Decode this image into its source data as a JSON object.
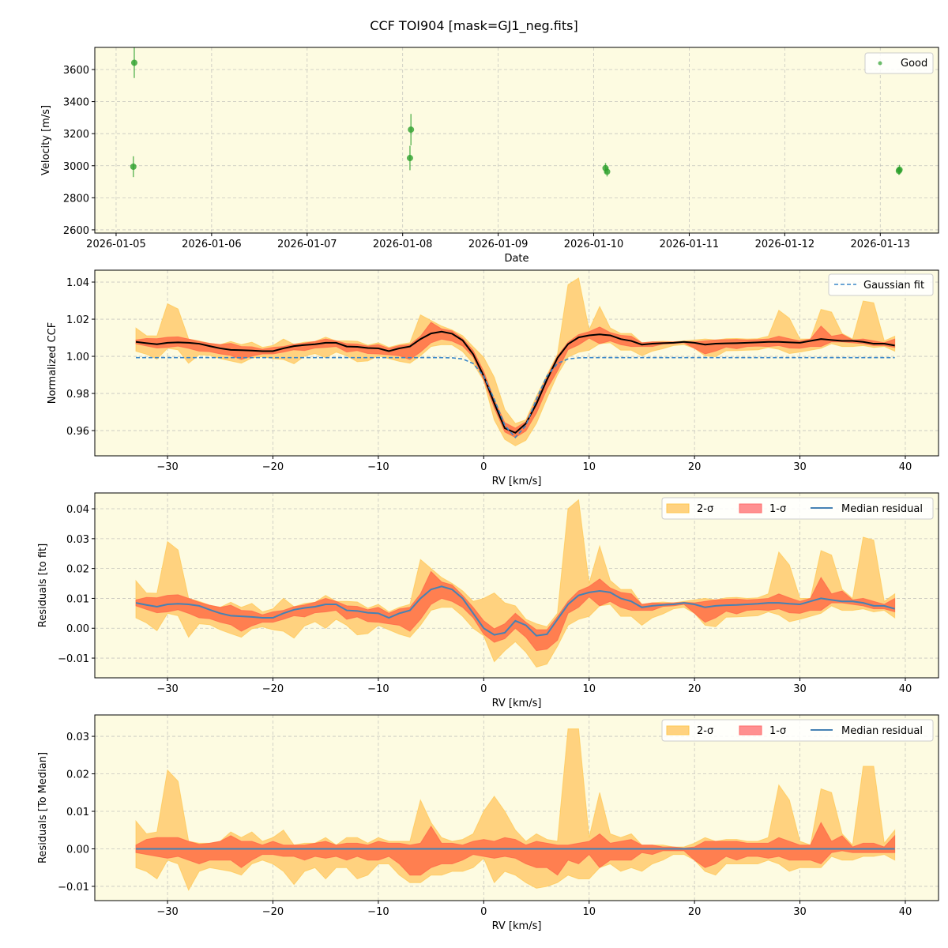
{
  "title": "CCF TOI904 [mask=GJ1_neg.fits]",
  "colors": {
    "axes_background": "#fdfbe1",
    "good_points": "#2ca02c",
    "two_sigma_fill": "#ffd27f",
    "one_sigma_fill": "#ff7f50",
    "median_line": "#000000",
    "fit_line": "#3a87c8",
    "median_residual": "#4682b4"
  },
  "chart_data": [
    {
      "type": "scatter",
      "xlabel": "Date",
      "ylabel": "Velocity [m/s]",
      "xlim": [
        "2026-01-04T18:39",
        "2026-01-13T14:38"
      ],
      "ylim": [
        2580,
        3738
      ],
      "grid": true,
      "legend": {
        "placement": "top-right",
        "entries": [
          "Good"
        ]
      },
      "x_tick_labels": [
        "2026-01-05",
        "2026-01-06",
        "2026-01-07",
        "2026-01-08",
        "2026-01-09",
        "2026-01-10",
        "2026-01-11",
        "2026-01-12",
        "2026-01-13"
      ],
      "y_ticks": [
        2600,
        2800,
        3000,
        3200,
        3400,
        3600
      ],
      "y_tick_labels": [
        "2600",
        "2800",
        "3000",
        "3200",
        "3400",
        "3600"
      ],
      "series": [
        {
          "name": "Good",
          "points": [
            {
              "date": "2026-01-05T04:34",
              "velocity": 3642,
              "error": 95
            },
            {
              "date": "2026-01-05T04:20",
              "velocity": 2994,
              "error": 65
            },
            {
              "date": "2026-01-08T02:05",
              "velocity": 3225,
              "error": 98
            },
            {
              "date": "2026-01-08T01:50",
              "velocity": 3048,
              "error": 76
            },
            {
              "date": "2026-01-10T02:58",
              "velocity": 2985,
              "error": 32
            },
            {
              "date": "2026-01-10T03:22",
              "velocity": 2963,
              "error": 30
            },
            {
              "date": "2026-01-13T04:50",
              "velocity": 2975,
              "error": 30
            },
            {
              "date": "2026-01-13T04:40",
              "velocity": 2968,
              "error": 25
            }
          ]
        }
      ]
    },
    {
      "type": "line",
      "xlabel": "RV [km/s]",
      "ylabel": "Normalized CCF",
      "xlim": [
        -36.9,
        43.15
      ],
      "ylim": [
        0.9464,
        1.0464
      ],
      "grid": true,
      "legend": {
        "placement": "top-right",
        "entries": [
          "Gaussian fit"
        ]
      },
      "y_ticks": [
        0.96,
        0.98,
        1.0,
        1.02,
        1.04
      ],
      "y_tick_labels": [
        "0.96",
        "0.98",
        "1.00",
        "1.02",
        "1.04"
      ],
      "gaussian_fit": {
        "baseline": 0.9993,
        "depth": 0.043,
        "center": 3.0,
        "sigma": 1.75
      }
    },
    {
      "type": "area",
      "xlabel": "RV [km/s]",
      "ylabel": "Residuals [to fit]",
      "xlim": [
        -36.9,
        43.15
      ],
      "ylim": [
        -0.0166,
        0.0453
      ],
      "grid": true,
      "legend": {
        "placement": "top-right",
        "entries": [
          "2-σ",
          "1-σ",
          "Median residual"
        ]
      },
      "y_ticks": [
        -0.01,
        0.0,
        0.01,
        0.02,
        0.03,
        0.04
      ],
      "y_tick_labels": [
        "−0.01",
        "0.00",
        "0.01",
        "0.02",
        "0.03",
        "0.04"
      ]
    },
    {
      "type": "area",
      "xlabel": "RV [km/s]",
      "ylabel": "Residuals [To Median]",
      "xlim": [
        -36.9,
        43.15
      ],
      "ylim": [
        -0.0138,
        0.0357
      ],
      "grid": true,
      "legend": {
        "placement": "top-right",
        "entries": [
          "2-σ",
          "1-σ",
          "Median residual"
        ]
      },
      "y_ticks": [
        -0.01,
        0.0,
        0.01,
        0.02,
        0.03
      ],
      "y_tick_labels": [
        "−0.01",
        "0.00",
        "0.01",
        "0.02",
        "0.03"
      ]
    }
  ],
  "rv_tick_values": [
    -30,
    -20,
    -10,
    0,
    10,
    20,
    30,
    40
  ],
  "rv_tick_labels": [
    "−30",
    "−20",
    "−10",
    "0",
    "10",
    "20",
    "30",
    "40"
  ],
  "ccf_profile": {
    "rv": [
      -33,
      -32,
      -31,
      -30,
      -29,
      -28,
      -27,
      -26,
      -25,
      -24,
      -23,
      -22,
      -21,
      -20,
      -19,
      -18,
      -17,
      -16,
      -15,
      -14,
      -13,
      -12,
      -11,
      -10,
      -9,
      -8,
      -7,
      -6,
      -5,
      -4,
      -3,
      -2,
      -1,
      0,
      1,
      2,
      3,
      4,
      5,
      6,
      7,
      8,
      9,
      10,
      11,
      12,
      13,
      14,
      15,
      16,
      17,
      18,
      19,
      20,
      21,
      22,
      23,
      24,
      25,
      26,
      27,
      28,
      29,
      30,
      31,
      32,
      33,
      34,
      35,
      36,
      37,
      38,
      39
    ],
    "median_residual": [
      0.0085,
      0.0078,
      0.0072,
      0.008,
      0.0082,
      0.008,
      0.0075,
      0.0062,
      0.005,
      0.0042,
      0.004,
      0.0038,
      0.0035,
      0.0035,
      0.005,
      0.0062,
      0.0068,
      0.0072,
      0.008,
      0.008,
      0.006,
      0.0058,
      0.0052,
      0.005,
      0.0035,
      0.005,
      0.006,
      0.01,
      0.013,
      0.014,
      0.013,
      0.01,
      0.005,
      0.0,
      -0.0022,
      -0.0015,
      0.0025,
      0.001,
      -0.0025,
      -0.002,
      0.003,
      0.008,
      0.011,
      0.012,
      0.0125,
      0.012,
      0.01,
      0.009,
      0.007,
      0.0075,
      0.0078,
      0.008,
      0.0085,
      0.008,
      0.007,
      0.0075,
      0.0077,
      0.0078,
      0.008,
      0.0082,
      0.0085,
      0.0085,
      0.0082,
      0.008,
      0.009,
      0.01,
      0.0095,
      0.009,
      0.009,
      0.0085,
      0.0075,
      0.0075,
      0.0065
    ],
    "two_sigma_upper_offset": [
      0.0074,
      0.004,
      0.0045,
      0.021,
      0.018,
      0.002,
      0.0015,
      0.0015,
      0.002,
      0.0045,
      0.003,
      0.0045,
      0.002,
      0.003,
      0.005,
      0.001,
      0.0015,
      0.0015,
      0.003,
      0.001,
      0.003,
      0.003,
      0.0015,
      0.003,
      0.002,
      0.002,
      0.002,
      0.013,
      0.007,
      0.003,
      0.002,
      0.0025,
      0.004,
      0.01,
      0.014,
      0.01,
      0.005,
      0.002,
      0.004,
      0.0025,
      0.002,
      0.032,
      0.032,
      0.003,
      0.015,
      0.004,
      0.003,
      0.004,
      0.001,
      0.001,
      0.001,
      0.0005,
      0.0005,
      0.0015,
      0.003,
      0.002,
      0.0025,
      0.0025,
      0.002,
      0.002,
      0.003,
      0.017,
      0.013,
      0.002,
      0.001,
      0.016,
      0.015,
      0.004,
      0.001,
      0.022,
      0.022,
      0.0015,
      0.005
    ],
    "one_sigma_upper_offset": [
      0.001,
      0.0025,
      0.003,
      0.003,
      0.003,
      0.002,
      0.0012,
      0.0015,
      0.002,
      0.0035,
      0.002,
      0.002,
      0.001,
      0.002,
      0.001,
      0.001,
      0.001,
      0.0015,
      0.002,
      0.001,
      0.0015,
      0.0015,
      0.001,
      0.002,
      0.0015,
      0.0015,
      0.001,
      0.0015,
      0.006,
      0.0015,
      0.0015,
      0.001,
      0.002,
      0.0025,
      0.002,
      0.003,
      0.0025,
      0.001,
      0.002,
      0.0015,
      0.001,
      0.001,
      0.0015,
      0.002,
      0.004,
      0.0015,
      0.002,
      0.0025,
      0.001,
      0.001,
      0.0005,
      0.0005,
      0.0002,
      0.0005,
      0.002,
      0.002,
      0.002,
      0.002,
      0.0015,
      0.0015,
      0.0015,
      0.003,
      0.002,
      0.001,
      0.001,
      0.007,
      0.002,
      0.0035,
      0.0005,
      0.0015,
      0.0015,
      0.0005,
      0.0035
    ],
    "one_sigma_lower_offset": [
      -0.001,
      -0.0015,
      -0.002,
      -0.0025,
      -0.002,
      -0.003,
      -0.004,
      -0.003,
      -0.003,
      -0.003,
      -0.005,
      -0.003,
      -0.0015,
      -0.0015,
      -0.002,
      -0.002,
      -0.003,
      -0.002,
      -0.0025,
      -0.002,
      -0.003,
      -0.002,
      -0.003,
      -0.003,
      -0.002,
      -0.004,
      -0.007,
      -0.007,
      -0.005,
      -0.004,
      -0.004,
      -0.003,
      -0.0015,
      -0.002,
      -0.0025,
      -0.002,
      -0.0025,
      -0.004,
      -0.005,
      -0.005,
      -0.007,
      -0.003,
      -0.004,
      -0.0015,
      -0.005,
      -0.003,
      -0.003,
      -0.003,
      -0.001,
      -0.0015,
      -0.0005,
      -0.0005,
      -0.0005,
      -0.003,
      -0.005,
      -0.004,
      -0.002,
      -0.003,
      -0.002,
      -0.002,
      -0.0025,
      -0.002,
      -0.003,
      -0.003,
      -0.003,
      -0.004,
      -0.001,
      -0.0005,
      -0.001,
      -0.001,
      -0.001,
      -0.001,
      -0.001
    ],
    "two_sigma_lower_offset": [
      -0.005,
      -0.006,
      -0.008,
      -0.003,
      -0.004,
      -0.011,
      -0.006,
      -0.005,
      -0.0055,
      -0.006,
      -0.007,
      -0.004,
      -0.003,
      -0.004,
      -0.006,
      -0.0095,
      -0.006,
      -0.005,
      -0.008,
      -0.005,
      -0.005,
      -0.008,
      -0.007,
      -0.004,
      -0.004,
      -0.007,
      -0.009,
      -0.009,
      -0.007,
      -0.007,
      -0.006,
      -0.006,
      -0.005,
      -0.0025,
      -0.009,
      -0.006,
      -0.007,
      -0.009,
      -0.0105,
      -0.01,
      -0.009,
      -0.007,
      -0.008,
      -0.008,
      -0.005,
      -0.004,
      -0.006,
      -0.005,
      -0.006,
      -0.004,
      -0.003,
      -0.0015,
      -0.0015,
      -0.003,
      -0.006,
      -0.007,
      -0.004,
      -0.004,
      -0.004,
      -0.004,
      -0.003,
      -0.004,
      -0.006,
      -0.005,
      -0.005,
      -0.005,
      -0.002,
      -0.003,
      -0.003,
      -0.002,
      -0.002,
      -0.0015,
      -0.003
    ]
  }
}
